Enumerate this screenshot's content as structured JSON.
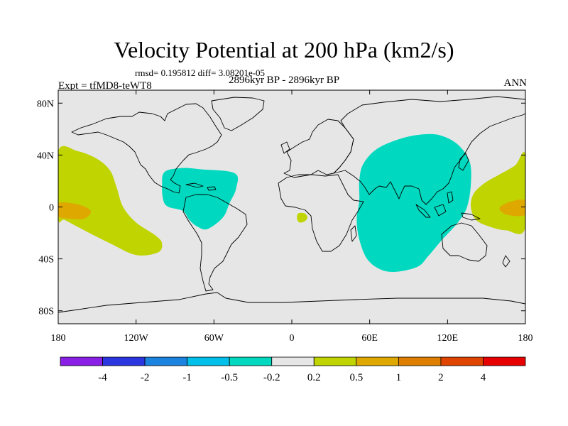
{
  "title": "Velocity Potential at 200 hPa (km2/s)",
  "stats": "rmsd= 0.195812 diff= 3.08201e-05",
  "experiment": "Expt = tfMD8-teWT8",
  "period": "2896kyr BP - 2896kyr BP",
  "season": "ANN",
  "colors": {
    "background": "#e6e6e6",
    "coast": "#000000",
    "neg_0_5_to_0_2": "#00d9bf",
    "pos_0_2_to_0_5": "#bfd400",
    "pos_0_5_to_1": "#dfa800"
  },
  "chart_data": {
    "type": "filled-contour-map",
    "variable": "Velocity Potential",
    "level": "200 hPa",
    "units": "km2/s",
    "projection": "cylindrical equidistant",
    "lon_range": [
      -180,
      180
    ],
    "lat_range": [
      -90,
      90
    ],
    "x_ticks": [
      {
        "lon": -180,
        "label": "180"
      },
      {
        "lon": -120,
        "label": "120W"
      },
      {
        "lon": -60,
        "label": "60W"
      },
      {
        "lon": 0,
        "label": "0"
      },
      {
        "lon": 60,
        "label": "60E"
      },
      {
        "lon": 120,
        "label": "120E"
      },
      {
        "lon": 180,
        "label": "180"
      }
    ],
    "y_ticks": [
      {
        "lat": 80,
        "label": "80N"
      },
      {
        "lat": 40,
        "label": "40N"
      },
      {
        "lat": 0,
        "label": "0"
      },
      {
        "lat": -40,
        "label": "40S"
      },
      {
        "lat": -80,
        "label": "80S"
      }
    ],
    "colorbar": {
      "levels": [
        "-4",
        "-2",
        "-1",
        "-0.5",
        "-0.2",
        "0.2",
        "0.5",
        "1",
        "2",
        "4"
      ],
      "colors": [
        "#8a1fe6",
        "#2b36e0",
        "#1a84e0",
        "#00bfe8",
        "#00d9bf",
        "#e6e6e6",
        "#bfd400",
        "#dfa800",
        "#df7f00",
        "#df4400",
        "#e60000"
      ]
    },
    "regions": [
      {
        "name": "central-pacific-positive",
        "range": "0.2 to 0.5",
        "lonlat": [
          [
            -180,
            43
          ],
          [
            -165,
            43
          ],
          [
            -150,
            37
          ],
          [
            -140,
            28
          ],
          [
            -135,
            15
          ],
          [
            -130,
            0
          ],
          [
            -120,
            -12
          ],
          [
            -105,
            -22
          ],
          [
            -100,
            -28
          ],
          [
            -103,
            -35
          ],
          [
            -120,
            -37
          ],
          [
            -140,
            -28
          ],
          [
            -160,
            -18
          ],
          [
            -175,
            -10
          ],
          [
            -180,
            -8
          ]
        ]
      },
      {
        "name": "central-pacific-core",
        "range": "0.5 to 1",
        "lonlat": [
          [
            -180,
            3
          ],
          [
            -165,
            2
          ],
          [
            -155,
            -3
          ],
          [
            -160,
            -9
          ],
          [
            -172,
            -9
          ],
          [
            -180,
            -7
          ]
        ]
      },
      {
        "name": "western-pacific-positive",
        "range": "0.2 to 0.5",
        "lonlat": [
          [
            180,
            40
          ],
          [
            172,
            32
          ],
          [
            160,
            25
          ],
          [
            148,
            18
          ],
          [
            140,
            10
          ],
          [
            138,
            0
          ],
          [
            142,
            -10
          ],
          [
            152,
            -15
          ],
          [
            165,
            -18
          ],
          [
            180,
            -16
          ]
        ]
      },
      {
        "name": "western-pacific-core",
        "range": "0.5 to 1",
        "lonlat": [
          [
            180,
            5
          ],
          [
            168,
            4
          ],
          [
            160,
            -1
          ],
          [
            166,
            -6
          ],
          [
            180,
            -6
          ]
        ]
      },
      {
        "name": "indian-ocean-asia-negative",
        "range": "-0.5 to -0.2",
        "lonlat": [
          [
            55,
            33
          ],
          [
            66,
            45
          ],
          [
            85,
            53
          ],
          [
            102,
            56
          ],
          [
            115,
            55
          ],
          [
            128,
            48
          ],
          [
            137,
            35
          ],
          [
            138,
            18
          ],
          [
            135,
            0
          ],
          [
            128,
            -12
          ],
          [
            116,
            -25
          ],
          [
            105,
            -38
          ],
          [
            97,
            -46
          ],
          [
            80,
            -50
          ],
          [
            68,
            -48
          ],
          [
            58,
            -40
          ],
          [
            52,
            -25
          ],
          [
            50,
            -10
          ],
          [
            52,
            5
          ],
          [
            52,
            20
          ]
        ]
      },
      {
        "name": "tropical-america-negative",
        "range": "-0.5 to -0.2",
        "lonlat": [
          [
            -98,
            27
          ],
          [
            -85,
            30
          ],
          [
            -70,
            29
          ],
          [
            -44,
            26
          ],
          [
            -43,
            14
          ],
          [
            -48,
            3
          ],
          [
            -53,
            -8
          ],
          [
            -65,
            -17
          ],
          [
            -73,
            -15
          ],
          [
            -79,
            -10
          ],
          [
            -84,
            -3
          ],
          [
            -95,
            0
          ],
          [
            -99,
            5
          ],
          [
            -100,
            17
          ]
        ]
      },
      {
        "name": "gulf-of-guinea-positive",
        "range": "0.2 to 0.5",
        "lonlat": [
          [
            5,
            -5
          ],
          [
            10,
            -5
          ],
          [
            12,
            -8
          ],
          [
            10,
            -11
          ],
          [
            6,
            -12
          ],
          [
            4,
            -9
          ]
        ]
      }
    ]
  }
}
